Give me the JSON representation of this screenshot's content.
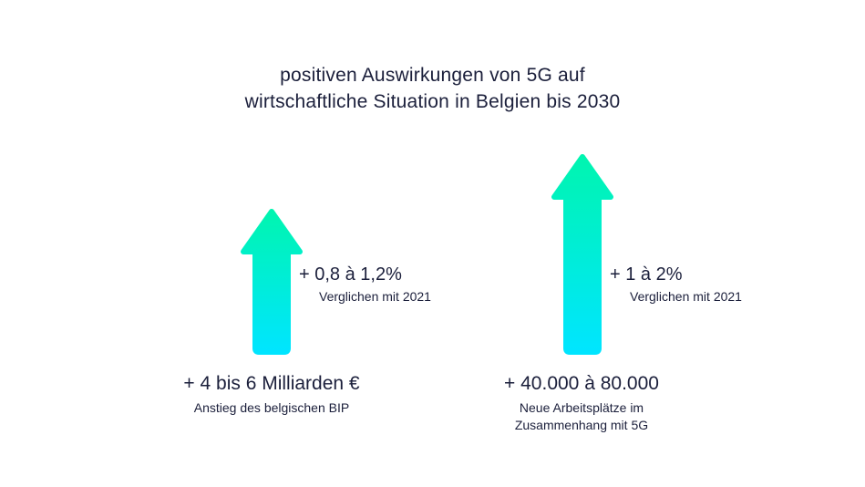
{
  "title": {
    "line1": "positiven Auswirkungen von 5G auf",
    "line2": "wirtschaftliche Situation in Belgien bis 2030"
  },
  "colors": {
    "text": "#1b1f3b",
    "arrow_top": "#00f5b0",
    "arrow_bottom": "#00e5ff"
  },
  "chart_data": {
    "type": "bar",
    "title": "positiven Auswirkungen von 5G auf wirtschaftliche Situation in Belgien bis 2030",
    "categories": [
      "+ 4 bis 6 Milliarden €",
      "+ 40.000 à 80.000"
    ],
    "series": [
      {
        "values": [
          1.2,
          2
        ]
      }
    ],
    "items": [
      {
        "headline": "+ 4 bis 6 Milliarden €",
        "caption": "Anstieg des belgischen BIP",
        "change": "+ 0,8 à 1,2%",
        "comparison": "Verglichen mit 2021",
        "value": 1.2
      },
      {
        "headline": "+ 40.000 à 80.000",
        "caption": "Neue Arbeitsplätze im Zusammenhang mit 5G",
        "change": "+ 1 à 2%",
        "comparison": "Verglichen mit 2021",
        "value": 2
      }
    ],
    "ylim": [
      0,
      2
    ]
  }
}
